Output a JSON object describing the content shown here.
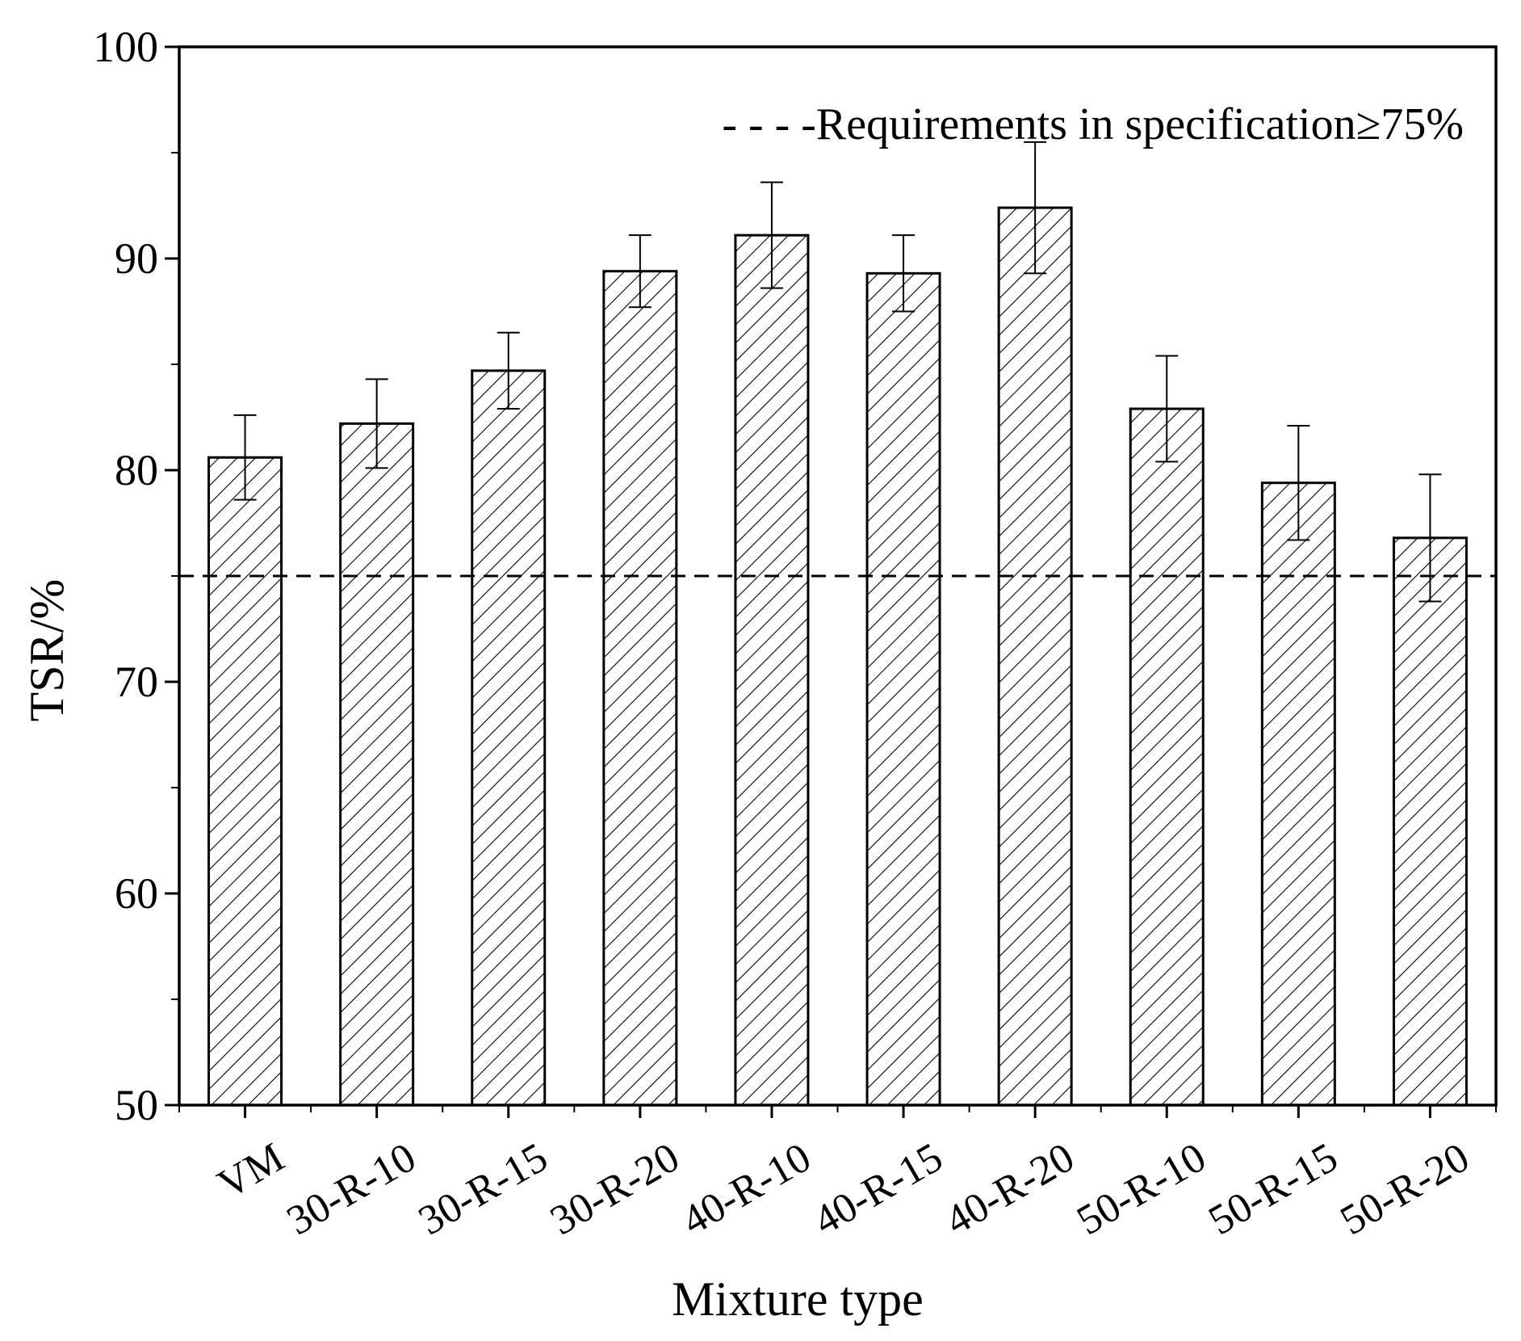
{
  "chart_data": {
    "type": "bar",
    "title": "",
    "xlabel": "Mixture type",
    "ylabel": "TSR/%",
    "ylim": [
      50,
      100
    ],
    "yticks": [
      50,
      60,
      70,
      80,
      90,
      100
    ],
    "yminor_step": 5,
    "grid": false,
    "bar_fill": "hatched",
    "categories": [
      "VM",
      "30-R-10",
      "30-R-15",
      "30-R-20",
      "40-R-10",
      "40-R-15",
      "40-R-20",
      "50-R-10",
      "50-R-15",
      "50-R-20"
    ],
    "values": [
      80.6,
      82.2,
      84.7,
      89.4,
      91.1,
      89.3,
      92.4,
      82.9,
      79.4,
      76.8
    ],
    "error": [
      2.0,
      2.1,
      1.8,
      1.7,
      2.5,
      1.8,
      3.1,
      2.5,
      2.7,
      3.0
    ],
    "reference_line": {
      "value": 75,
      "style": "dashed"
    },
    "legend": {
      "text": "- - - -Requirements in specification≥75%",
      "position": "top-right"
    }
  }
}
